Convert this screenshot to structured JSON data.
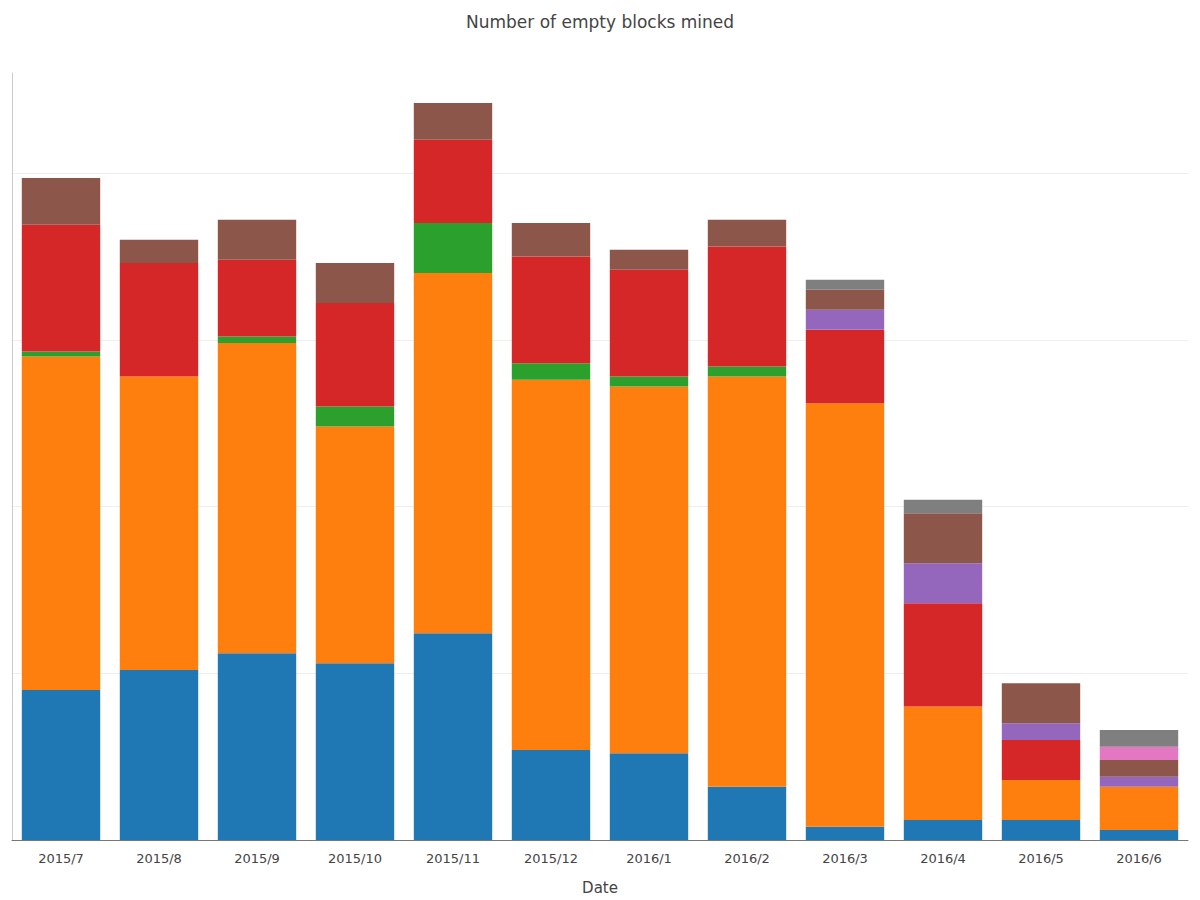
{
  "chart_data": {
    "type": "bar",
    "title": "Number of empty blocks mined",
    "x_label": "Date",
    "categories": [
      "2015/7",
      "2015/8",
      "2015/9",
      "2015/10",
      "2015/11",
      "2015/12",
      "2016/1",
      "2016/2",
      "2016/3",
      "2016/4",
      "2016/5",
      "2016/6"
    ],
    "series": [
      {
        "color": "#1f77b4",
        "values": [
          45,
          51,
          56,
          53,
          62,
          27,
          26,
          16,
          4,
          6,
          6,
          3
        ]
      },
      {
        "color": "#ff7f0e",
        "values": [
          100,
          88,
          93,
          71,
          108,
          111,
          110,
          123,
          127,
          34,
          12,
          13
        ]
      },
      {
        "color": "#2ca02c",
        "values": [
          1.5,
          0,
          2,
          6,
          15,
          5,
          3,
          3,
          0,
          0,
          0,
          0
        ]
      },
      {
        "color": "#d62728",
        "values": [
          38,
          34,
          23,
          31,
          25,
          32,
          32,
          36,
          22,
          31,
          12,
          0
        ]
      },
      {
        "color": "#9467bd",
        "values": [
          0,
          0,
          0,
          0,
          0,
          0,
          0,
          0,
          6,
          12,
          5,
          3
        ]
      },
      {
        "color": "#8c564b",
        "values": [
          14,
          7,
          12,
          12,
          11,
          10,
          6,
          8,
          6,
          15,
          12,
          5
        ]
      },
      {
        "color": "#e377c2",
        "values": [
          0,
          0,
          0,
          0,
          0,
          0,
          0,
          0,
          0,
          0,
          0,
          4
        ]
      },
      {
        "color": "#7f7f7f",
        "values": [
          0,
          0,
          0,
          0,
          0,
          0,
          0,
          0,
          3,
          4,
          0,
          5
        ]
      }
    ],
    "ylim": [
      0,
      230
    ],
    "yticks": [
      0,
      50,
      100,
      150,
      200
    ],
    "stacked": true,
    "grid": true,
    "tick_labels": "x"
  }
}
